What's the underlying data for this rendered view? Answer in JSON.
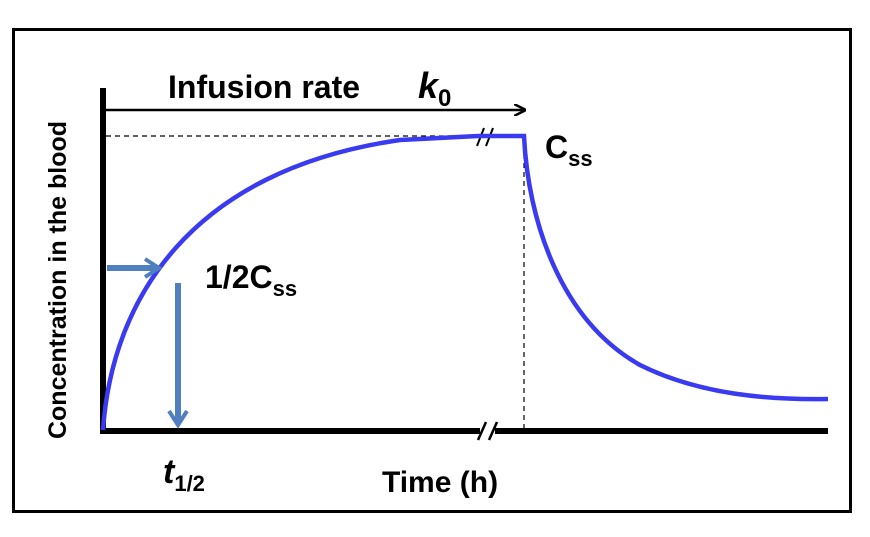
{
  "diagram": {
    "y_axis_label": "Concentration in the blood",
    "x_axis_label": "Time (h)",
    "infusion_label": "Infusion rate",
    "infusion_symbol": "k",
    "infusion_symbol_sub": "0",
    "css_main": "C",
    "css_sub": "ss",
    "half_css_main": "1/2C",
    "half_css_sub": "ss",
    "half_life_main": "t",
    "half_life_sub": "1/2",
    "curve_color": "#3a3af0",
    "arrow_color": "#4f7fbf",
    "axis_color": "#000000"
  }
}
